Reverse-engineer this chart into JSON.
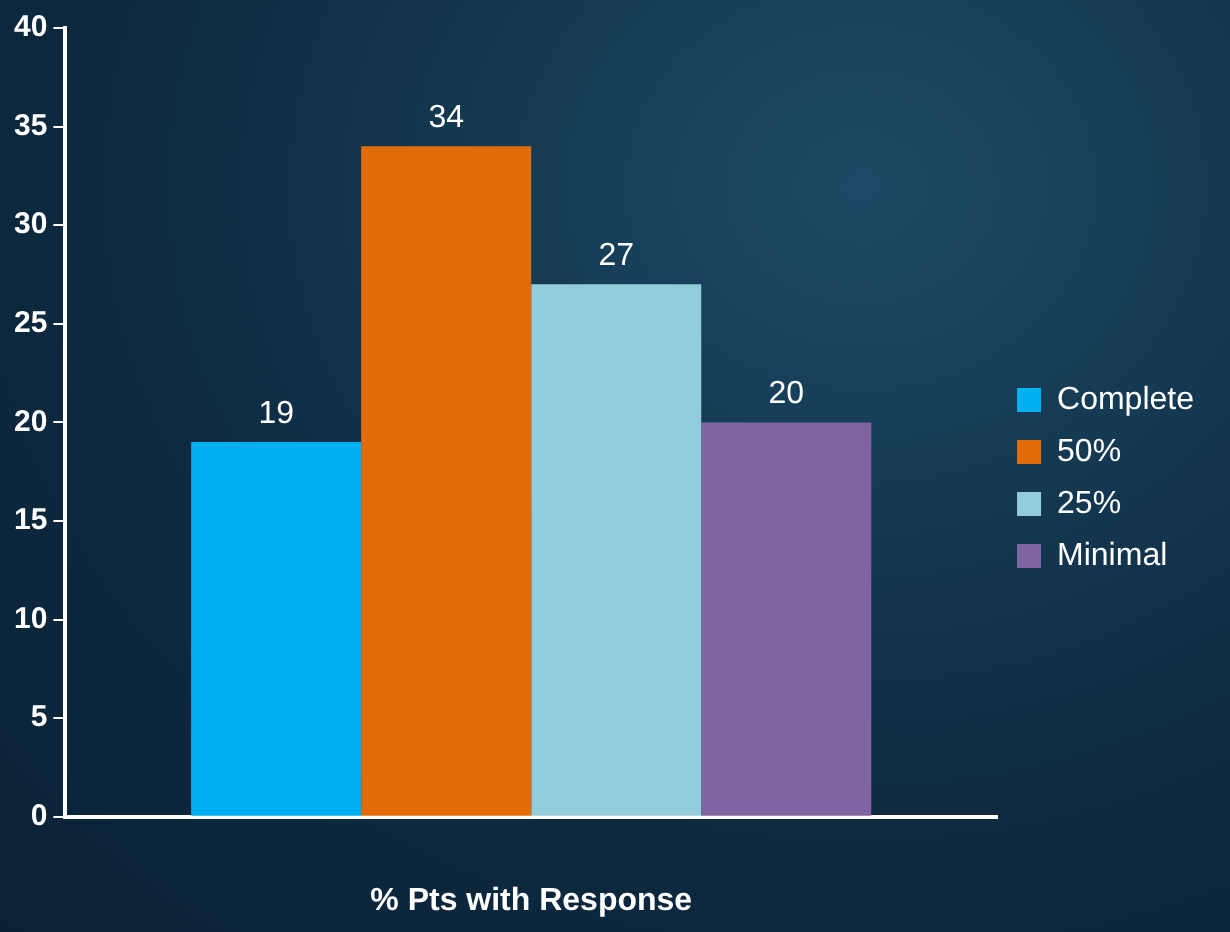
{
  "chart_data": {
    "type": "bar",
    "xlabel": "% Pts with Response",
    "categories": [
      null
    ],
    "series": [
      {
        "name": "Complete",
        "color": "#00b0f0",
        "values": [
          19
        ]
      },
      {
        "name": "50%",
        "color": "#e36c0a",
        "values": [
          34
        ]
      },
      {
        "name": "25%",
        "color": "#92cddc",
        "values": [
          27
        ]
      },
      {
        "name": "Minimal",
        "color": "#8064a2",
        "values": [
          20
        ]
      }
    ],
    "ylim": [
      0,
      40
    ],
    "yticks": [
      0,
      5,
      10,
      15,
      20,
      25,
      30,
      35,
      40
    ],
    "data_labels": true,
    "legend": "right",
    "grid": false
  }
}
